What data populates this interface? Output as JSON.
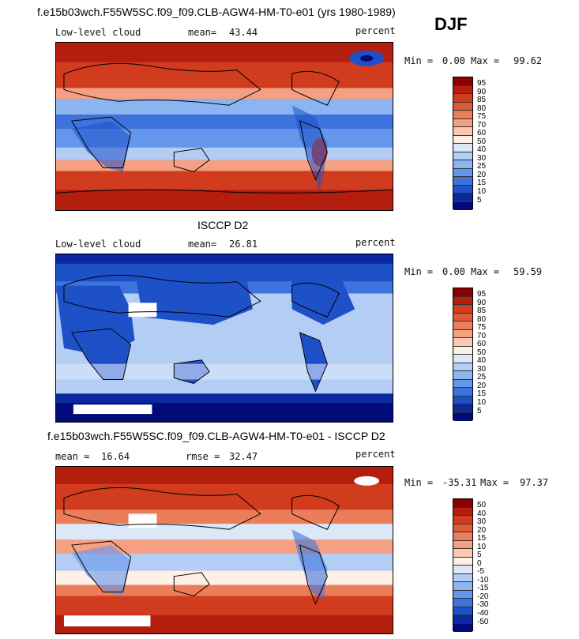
{
  "header": {
    "title": "f.e15b03wch.F55W5SC.f09_f09.CLB-AGW4-HM-T0-e01 (yrs 1980-1989)",
    "season": "DJF"
  },
  "panels": [
    {
      "id": "model",
      "field_label": "Low-level cloud",
      "stat_label": "mean=",
      "stat_value": "43.44",
      "unit": "percent",
      "min_label": "Min =",
      "min_value": "0.00",
      "max_label": "Max =",
      "max_value": "99.62",
      "colorbar_labels": [
        "95",
        "90",
        "85",
        "80",
        "75",
        "70",
        "60",
        "50",
        "40",
        "30",
        "25",
        "20",
        "15",
        "10",
        "5"
      ]
    },
    {
      "id": "obs",
      "center_title": "ISCCP D2",
      "field_label": "Low-level cloud",
      "stat_label": "mean=",
      "stat_value": "26.81",
      "unit": "percent",
      "min_label": "Min =",
      "min_value": "0.00",
      "max_label": "Max =",
      "max_value": "59.59",
      "colorbar_labels": [
        "95",
        "90",
        "85",
        "80",
        "75",
        "70",
        "60",
        "50",
        "40",
        "30",
        "25",
        "20",
        "15",
        "10",
        "5"
      ]
    },
    {
      "id": "diff",
      "diff_title": "f.e15b03wch.F55W5SC.f09_f09.CLB-AGW4-HM-T0-e01 - ISCCP D2",
      "mean_label": "mean =",
      "mean_value": "16.64",
      "rmse_label": "rmse =",
      "rmse_value": "32.47",
      "unit": "percent",
      "min_label": "Min =",
      "min_value": "-35.31",
      "max_label": "Max =",
      "max_value": "97.37",
      "colorbar_labels": [
        "50",
        "40",
        "30",
        "20",
        "15",
        "10",
        "5",
        "0",
        "-5",
        "-10",
        "-15",
        "-20",
        "-30",
        "-40",
        "-50"
      ]
    }
  ],
  "colors": {
    "scale": [
      "#8b0000",
      "#b41e0f",
      "#d23c1e",
      "#e05a37",
      "#eb7d5a",
      "#f5a082",
      "#fac8b4",
      "#fff0e6",
      "#dce8fa",
      "#b4cdf5",
      "#8cb4f0",
      "#6496eb",
      "#3c73dc",
      "#1e50c8",
      "#0a28a0",
      "#000a78"
    ]
  }
}
